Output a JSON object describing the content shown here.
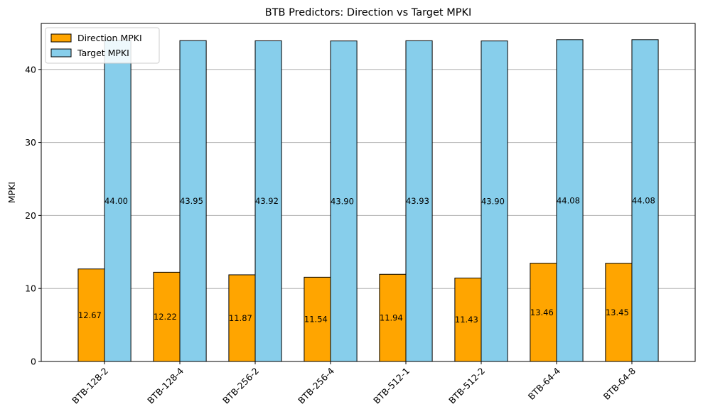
{
  "chart_data": {
    "type": "bar",
    "title": "BTB Predictors: Direction vs Target MPKI",
    "xlabel": "",
    "ylabel": "MPKI",
    "categories": [
      "BTB-128-2",
      "BTB-128-4",
      "BTB-256-2",
      "BTB-256-4",
      "BTB-512-1",
      "BTB-512-2",
      "BTB-64-4",
      "BTB-64-8"
    ],
    "series": [
      {
        "name": "Direction MPKI",
        "color": "#FFA500",
        "values": [
          12.67,
          12.22,
          11.87,
          11.54,
          11.94,
          11.43,
          13.46,
          13.45
        ],
        "labels": [
          "12.67",
          "12.22",
          "11.87",
          "11.54",
          "11.94",
          "11.43",
          "13.46",
          "13.45"
        ]
      },
      {
        "name": "Target MPKI",
        "color": "#87CEEB",
        "values": [
          44.0,
          43.95,
          43.92,
          43.9,
          43.93,
          43.9,
          44.08,
          44.08
        ],
        "labels": [
          "44.00",
          "43.95",
          "43.92",
          "43.90",
          "43.93",
          "43.90",
          "44.08",
          "44.08"
        ]
      }
    ],
    "ylim": [
      0,
      46.3
    ],
    "yticks": [
      "0",
      "10",
      "20",
      "30",
      "40"
    ],
    "grid": "y",
    "legend": "top-left"
  }
}
